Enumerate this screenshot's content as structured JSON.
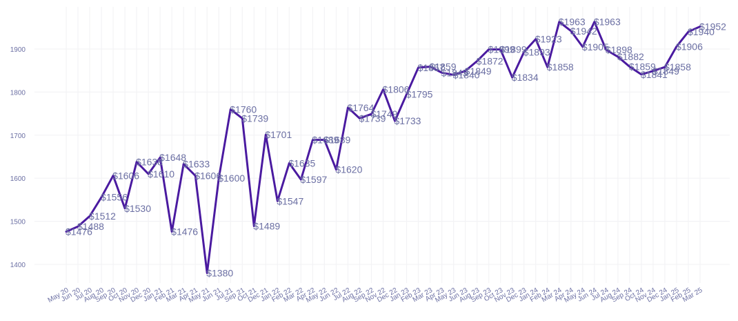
{
  "colors": {
    "line": "#4a1aa0",
    "text": "#6b6fa3",
    "grid": "#f3f3f5"
  },
  "chart_data": {
    "type": "line",
    "title": "",
    "xlabel": "",
    "ylabel": "",
    "grid": true,
    "legend": "none",
    "ylim": [
      1350,
      1990
    ],
    "yticks": [
      1400,
      1500,
      1600,
      1700,
      1800,
      1900
    ],
    "categories": [
      "May 20",
      "Jun 20",
      "Jul 20",
      "Aug 20",
      "Sep 20",
      "Oct 20",
      "Nov 20",
      "Dec 20",
      "Jan 21",
      "Feb 21",
      "Mar 21",
      "Apr 21",
      "May 21",
      "Jun 21",
      "Jul 21",
      "Sep 21",
      "Oct 21",
      "Dec 21",
      "Jan 22",
      "Feb 22",
      "Mar 22",
      "Apr 22",
      "May 22",
      "Jun 22",
      "Jul 22",
      "Aug 22",
      "Sep 22",
      "Nov 22",
      "Dec 22",
      "Jan 23",
      "Feb 23",
      "Mar 23",
      "Apr 23",
      "May 23",
      "Jun 23",
      "Aug 23",
      "Sep 23",
      "Oct 23",
      "Nov 23",
      "Dec 23",
      "Jan 24",
      "Feb 24",
      "Mar 24",
      "Apr 24",
      "May 24",
      "Jun 24",
      "Jul 24",
      "Aug 24",
      "Sep 24",
      "Oct 24",
      "Nov 24",
      "Dec 24",
      "Jan 25",
      "Feb 25",
      "Mar 25"
    ],
    "series": [
      {
        "values": [
          1476,
          1488,
          1512,
          1556,
          1606,
          1530,
          1638,
          1610,
          1648,
          1476,
          1633,
          1606,
          1380,
          1600,
          1760,
          1739,
          1489,
          1701,
          1547,
          1635,
          1597,
          1689,
          1689,
          1620,
          1764,
          1739,
          1749,
          1806,
          1733,
          1795,
          1857,
          1859,
          1845,
          1840,
          1849,
          1872,
          1899,
          1899,
          1834,
          1893,
          1923,
          1858,
          1963,
          1942,
          1905,
          1963,
          1898,
          1882,
          1859,
          1841,
          1849,
          1858,
          1906,
          1940,
          1952
        ],
        "labels": [
          "$1476",
          "$1488",
          "$1512",
          "$1556",
          "$1606",
          "$1530",
          "$1638",
          "$1610",
          "$1648",
          "$1476",
          "$1633",
          "$1606",
          "$1380",
          "$1600",
          "$1760",
          "$1739",
          "$1489",
          "$1701",
          "$1547",
          "$1635",
          "$1597",
          "$1689",
          "$1689",
          "$1620",
          "$1764",
          "$1739",
          "$1749",
          "$1806",
          "$1733",
          "$1795",
          "$1857",
          "$1859",
          "$1845",
          "$1840",
          "$1849",
          "$1872",
          "$1899",
          "$1899",
          "$1834",
          "$1893",
          "$1923",
          "$1858",
          "$1963",
          "$1942",
          "$1905",
          "$1963",
          "$1898",
          "$1882",
          "$1859",
          "$1841",
          "$1849",
          "$1858",
          "$1906",
          "$1940",
          "$1952"
        ]
      }
    ]
  }
}
